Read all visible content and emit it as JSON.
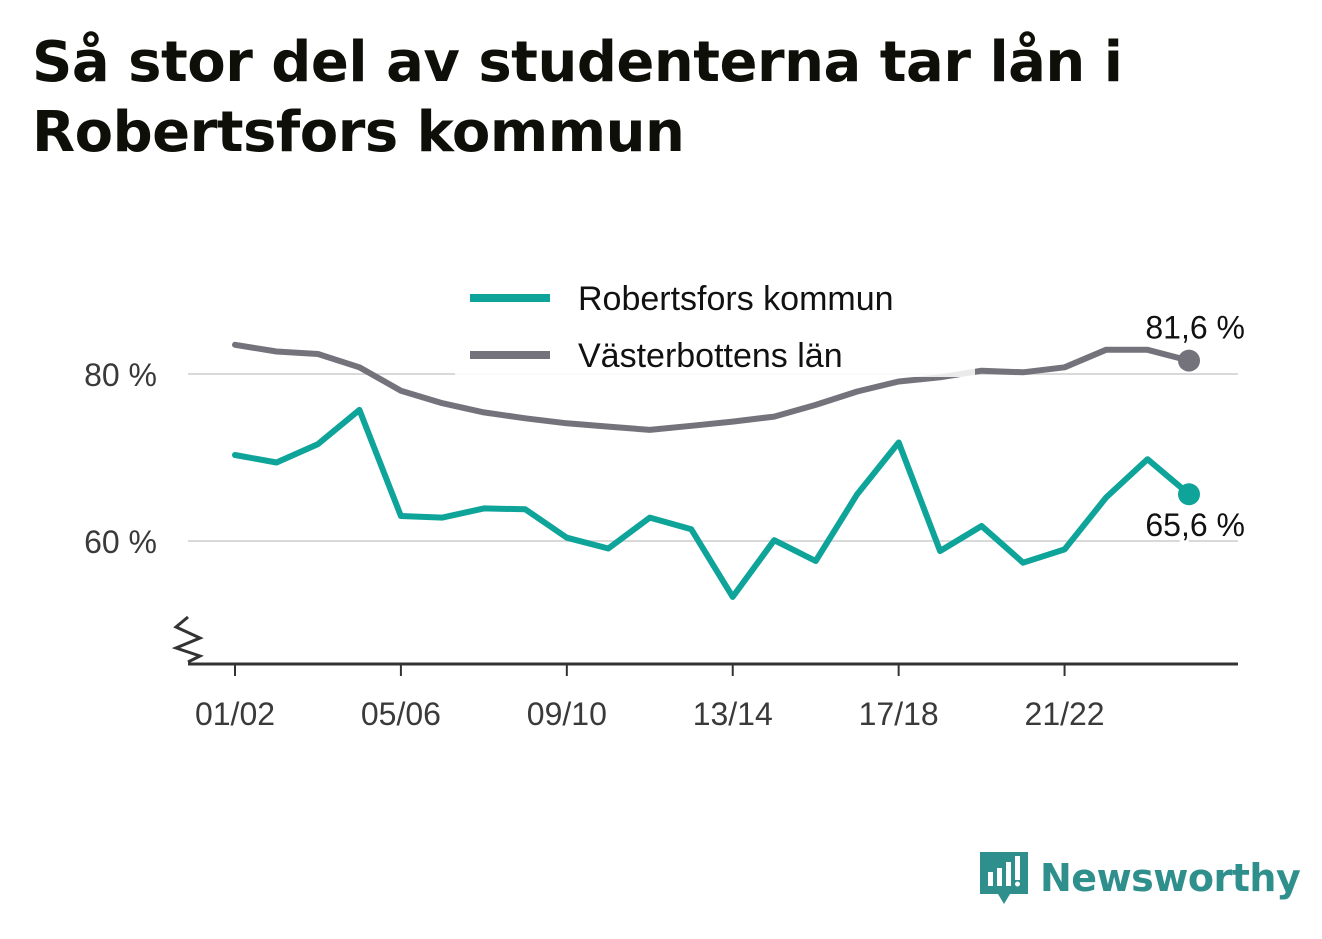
{
  "title": "Så stor del av studenterna tar lån i Robertsfors kommun",
  "brand": {
    "name": "Newsworthy",
    "icon": "newsworthy-logo-icon",
    "color": "#2f8f8c"
  },
  "chart_data": {
    "type": "line",
    "x": [
      "01/02",
      "02/03",
      "03/04",
      "04/05",
      "05/06",
      "06/07",
      "07/08",
      "08/09",
      "09/10",
      "10/11",
      "11/12",
      "12/13",
      "13/14",
      "14/15",
      "15/16",
      "16/17",
      "17/18",
      "18/19",
      "19/20",
      "20/21",
      "21/22",
      "22/23",
      "23/24",
      "24/25"
    ],
    "xticks": [
      "01/02",
      "05/06",
      "09/10",
      "13/14",
      "17/18",
      "21/22"
    ],
    "yticks": [
      {
        "value": 60,
        "label": "60 %"
      },
      {
        "value": 80,
        "label": "80 %"
      }
    ],
    "ylim": [
      44.2,
      90
    ],
    "axis_break": true,
    "grid": true,
    "legend": "top-center",
    "series": [
      {
        "name": "Robertsfors kommun",
        "color": "#0ea49a",
        "values": [
          70.3,
          69.4,
          71.6,
          75.7,
          63.0,
          62.8,
          63.9,
          63.8,
          60.4,
          59.1,
          62.8,
          61.4,
          53.3,
          60.1,
          57.6,
          65.6,
          71.8,
          58.8,
          61.8,
          57.4,
          59.0,
          65.2,
          69.8,
          65.6
        ],
        "end_label": "65,6 %"
      },
      {
        "name": "Västerbottens län",
        "color": "#74737c",
        "values": [
          83.5,
          82.7,
          82.4,
          80.8,
          78.0,
          76.5,
          75.4,
          74.7,
          74.1,
          73.7,
          73.3,
          73.8,
          74.3,
          74.9,
          76.3,
          77.9,
          79.1,
          79.6,
          80.4,
          80.2,
          80.8,
          82.9,
          82.9,
          81.6
        ],
        "end_label": "81,6 %"
      }
    ]
  }
}
